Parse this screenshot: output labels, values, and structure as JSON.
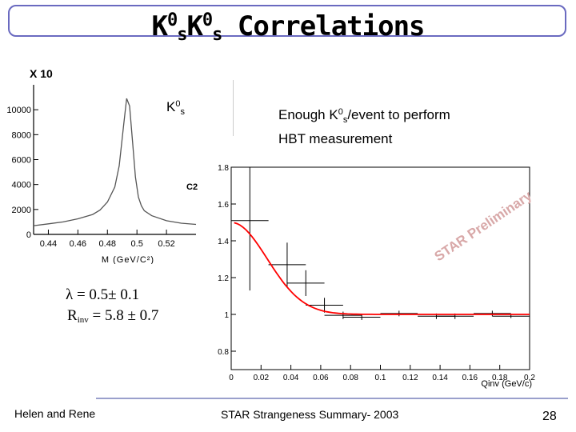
{
  "title": {
    "k1": "K",
    "sup1": "0",
    "sub1": "s",
    "k2": "K",
    "sup2": "0",
    "sub2": "s",
    "rest": " Correlations"
  },
  "scale_label": "X 10",
  "k0s_label": {
    "base": "K",
    "sup": "0",
    "sub": "s"
  },
  "note": {
    "line1_pre": "Enough K",
    "line1_sup": "0",
    "line1_sub": "s",
    "line1_post": "/event to perform",
    "line2": "HBT measurement"
  },
  "fit_results": {
    "lambda_symbol": "λ",
    "lambda_text": " = 0.5± 0.1",
    "rinv_r": "R",
    "rinv_sub": "inv",
    "rinv_text": " = 5.8 ± 0.7"
  },
  "watermark": {
    "star": "STAR",
    "preliminary": "Preliminary"
  },
  "footer": {
    "left": "Helen and Rene",
    "center": "STAR Strangeness Summary- 2003",
    "page": "28"
  },
  "chart_data": [
    {
      "type": "line",
      "name": "mass-distribution",
      "xlabel": "M (GeV/C²)",
      "ylabel": "",
      "xlim": [
        0.43,
        0.54
      ],
      "ylim": [
        0,
        12000
      ],
      "xticks": [
        0.44,
        0.46,
        0.48,
        0.5,
        0.52
      ],
      "xtick_labels": [
        "0.44",
        "0.46",
        "0.48",
        "0.5",
        "0.52"
      ],
      "yticks": [
        0,
        2000,
        4000,
        6000,
        8000,
        10000
      ],
      "ytick_labels": [
        "0",
        "2000",
        "4000",
        "6000",
        "8000",
        "10000"
      ],
      "x": [
        0.43,
        0.44,
        0.45,
        0.46,
        0.47,
        0.475,
        0.48,
        0.485,
        0.488,
        0.491,
        0.493,
        0.495,
        0.497,
        0.499,
        0.501,
        0.503,
        0.505,
        0.51,
        0.52,
        0.53,
        0.54
      ],
      "y": [
        700,
        850,
        1000,
        1250,
        1600,
        1950,
        2600,
        3800,
        5500,
        8800,
        10900,
        10300,
        7500,
        4600,
        3000,
        2300,
        1900,
        1500,
        1100,
        900,
        800
      ]
    },
    {
      "type": "scatter",
      "name": "correlation-function",
      "title": "C2",
      "xlabel": "Qinv (GeV/c)",
      "ylabel": "",
      "xlim": [
        0,
        0.2
      ],
      "ylim": [
        0.7,
        1.8
      ],
      "xticks": [
        0,
        0.02,
        0.04,
        0.06,
        0.08,
        0.1,
        0.12,
        0.14,
        0.16,
        0.18,
        0.2
      ],
      "xtick_labels": [
        "0",
        "0.02",
        "0.04",
        "0.06",
        "0.08",
        "0.1",
        "0.12",
        "0.14",
        "0.16",
        "0.18",
        "0.2"
      ],
      "yticks": [
        0.8,
        1,
        1.2,
        1.4,
        1.6,
        1.8
      ],
      "ytick_labels": [
        "0.8",
        "1",
        "1.2",
        "1.4",
        "1.6",
        "1.8"
      ],
      "points": [
        {
          "x": 0.0125,
          "y": 1.51,
          "xerr": 0.0125,
          "yerr": 0.38
        },
        {
          "x": 0.0375,
          "y": 1.27,
          "xerr": 0.0125,
          "yerr": 0.12
        },
        {
          "x": 0.05,
          "y": 1.17,
          "xerr": 0.0125,
          "yerr": 0.07
        },
        {
          "x": 0.0625,
          "y": 1.05,
          "xerr": 0.0125,
          "yerr": 0.04
        },
        {
          "x": 0.075,
          "y": 0.995,
          "xerr": 0.0125,
          "yerr": 0.02
        },
        {
          "x": 0.0875,
          "y": 0.985,
          "xerr": 0.0125,
          "yerr": 0.015
        },
        {
          "x": 0.1125,
          "y": 1.005,
          "xerr": 0.0125,
          "yerr": 0.015
        },
        {
          "x": 0.1375,
          "y": 0.99,
          "xerr": 0.0125,
          "yerr": 0.015
        },
        {
          "x": 0.15,
          "y": 0.99,
          "xerr": 0.0125,
          "yerr": 0.015
        },
        {
          "x": 0.175,
          "y": 1.005,
          "xerr": 0.0125,
          "yerr": 0.015
        },
        {
          "x": 0.1875,
          "y": 0.99,
          "xerr": 0.0125,
          "yerr": 0.01
        }
      ],
      "fit": {
        "lambda": 0.5,
        "rinv": 5.8,
        "color": "#ff0000"
      }
    }
  ]
}
